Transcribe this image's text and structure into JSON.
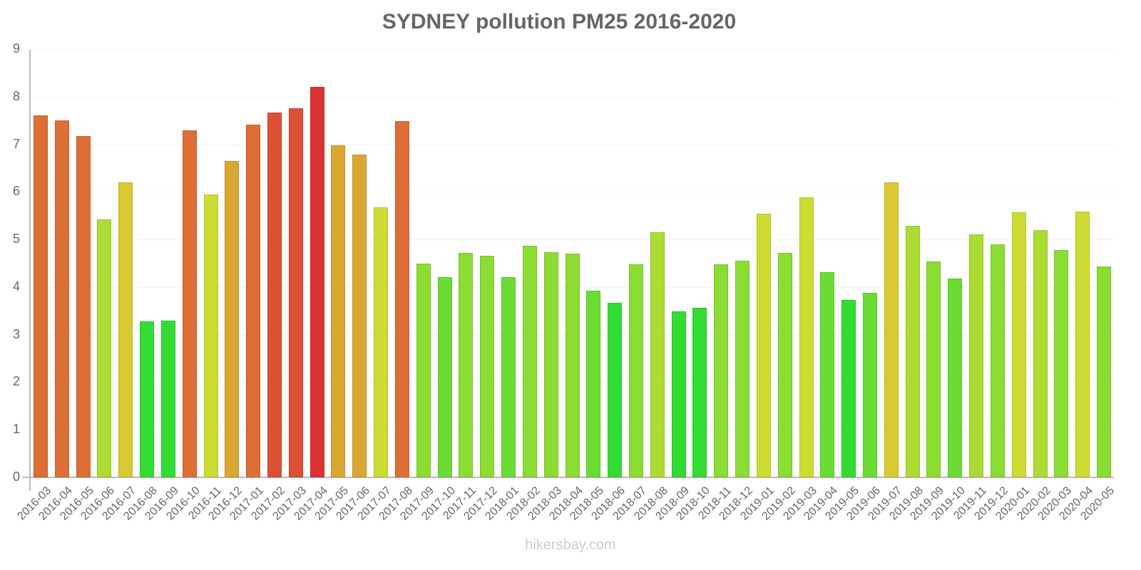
{
  "chart_data": {
    "type": "bar",
    "title": "SYDNEY pollution PM25 2016-2020",
    "xlabel": "",
    "ylabel": "",
    "ylim": [
      0,
      9
    ],
    "yticks": [
      0,
      1,
      2,
      3,
      4,
      5,
      6,
      7,
      8,
      9
    ],
    "grid": true,
    "legend": null,
    "categories": [
      "2016-03",
      "2016-04",
      "2016-05",
      "2016-06",
      "2016-07",
      "2016-08",
      "2016-09",
      "2016-10",
      "2016-11",
      "2016-12",
      "2017-01",
      "2017-02",
      "2017-03",
      "2017-04",
      "2017-05",
      "2017-06",
      "2017-07",
      "2017-08",
      "2017-09",
      "2017-10",
      "2017-11",
      "2017-12",
      "2018-01",
      "2018-02",
      "2018-03",
      "2018-04",
      "2018-05",
      "2018-06",
      "2018-07",
      "2018-08",
      "2018-09",
      "2018-10",
      "2018-11",
      "2018-12",
      "2019-01",
      "2019-02",
      "2019-03",
      "2019-04",
      "2019-05",
      "2019-06",
      "2019-07",
      "2019-08",
      "2019-09",
      "2019-10",
      "2019-11",
      "2019-12",
      "2020-01",
      "2020-02",
      "2020-03",
      "2020-04",
      "2020-05"
    ],
    "values": [
      7.6,
      7.5,
      7.17,
      5.42,
      6.2,
      3.28,
      3.29,
      7.29,
      5.94,
      6.65,
      7.42,
      7.66,
      7.75,
      8.2,
      6.98,
      6.78,
      5.67,
      7.49,
      4.49,
      4.21,
      4.72,
      4.66,
      4.21,
      4.87,
      4.73,
      4.7,
      3.92,
      3.67,
      4.48,
      5.15,
      3.49,
      3.56,
      4.48,
      4.55,
      5.54,
      4.72,
      5.88,
      4.31,
      3.73,
      3.88,
      6.2,
      5.29,
      4.54,
      4.18,
      5.1,
      4.9,
      5.57,
      5.2,
      4.78,
      5.59,
      4.43
    ],
    "colors": [
      "#dd6e35",
      "#dd6e35",
      "#dd6e35",
      "#acdc33",
      "#dbc933",
      "#33dc33",
      "#33dc33",
      "#dd6e35",
      "#cddc33",
      "#dba733",
      "#dd6e35",
      "#dc5033",
      "#dc5033",
      "#db3333",
      "#dba733",
      "#dba733",
      "#cddc33",
      "#dd6e35",
      "#8bdc33",
      "#6adc33",
      "#8bdc33",
      "#8bdc33",
      "#6adc33",
      "#8bdc33",
      "#8bdc33",
      "#8bdc33",
      "#6adc33",
      "#33dc33",
      "#8bdc33",
      "#acdc33",
      "#33dc33",
      "#33dc33",
      "#8bdc33",
      "#8bdc33",
      "#cddc33",
      "#8bdc33",
      "#cddc33",
      "#6adc33",
      "#33dc33",
      "#6adc33",
      "#dbc933",
      "#acdc33",
      "#8bdc33",
      "#6adc33",
      "#acdc33",
      "#8bdc33",
      "#cddc33",
      "#acdc33",
      "#8bdc33",
      "#cddc33",
      "#8bdc33"
    ]
  },
  "footer": {
    "watermark": "hikersbay.com"
  }
}
